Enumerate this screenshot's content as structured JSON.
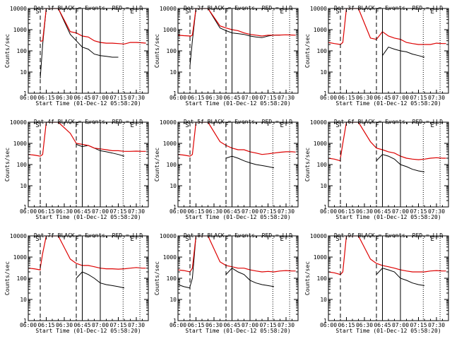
{
  "chart_data": [
    {
      "type": "line",
      "title": "Det 1f BLACK = Events, RED = LLD",
      "xlabel": "Start Time (01-Dec-12 05:58:20)",
      "ylabel": "Counts/sec",
      "yscale": "log",
      "ylim": [
        1,
        10000
      ],
      "xlim": [
        "06:00",
        "07:40"
      ],
      "x_ticks": [
        "06:00",
        "06:15",
        "06:30",
        "06:45",
        "07:00",
        "07:15",
        "07:30"
      ],
      "y_ticks": [
        "1",
        "10",
        "100",
        "1000",
        "10000"
      ],
      "grid": false,
      "vlines": {
        "dashed": [
          "06:10",
          "06:40"
        ],
        "solid": [
          "06:45",
          "07:00"
        ],
        "dotted": [
          "07:19",
          "07:33"
        ]
      },
      "markers": [
        "S",
        "F",
        "E"
      ],
      "x": [
        "06:00",
        "06:05",
        "06:10",
        "06:10",
        "06:12",
        "06:15",
        "06:25",
        "06:35",
        "06:40",
        "06:45",
        "06:50",
        "06:55",
        "07:00",
        "07:05",
        "07:10",
        "07:15",
        "07:20",
        "07:25",
        "07:30",
        "07:35",
        "07:38"
      ],
      "series": [
        {
          "name": "Events",
          "color": "#000000",
          "values": [
            null,
            null,
            null,
            5,
            200,
            10000,
            10000,
            600,
            300,
            150,
            120,
            70,
            60,
            55,
            50,
            50,
            null,
            null,
            null,
            null,
            null
          ]
        },
        {
          "name": "LLD",
          "color": "#dd0000",
          "values": [
            null,
            null,
            null,
            280,
            300,
            10000,
            10000,
            800,
            700,
            500,
            450,
            300,
            250,
            230,
            230,
            220,
            210,
            250,
            250,
            240,
            230
          ]
        }
      ]
    },
    {
      "type": "line",
      "title": "Det 2f BLACK = Events, RED = LLD",
      "xlabel": "Start Time (01-Dec-12 05:58:20)",
      "ylabel": "Counts/sec",
      "yscale": "log",
      "ylim": [
        1,
        10000
      ],
      "xlim": [
        "06:00",
        "07:40"
      ],
      "x_ticks": [
        "06:00",
        "06:15",
        "06:30",
        "06:45",
        "07:00",
        "07:15",
        "07:30"
      ],
      "y_ticks": [
        "1",
        "10",
        "100",
        "1000",
        "10000"
      ],
      "grid": false,
      "vlines": {
        "dashed": [
          "06:10",
          "06:40"
        ],
        "solid": [
          "06:45",
          "07:00"
        ],
        "dotted": [
          "07:19",
          "07:33"
        ]
      },
      "markers": [
        "S",
        "F",
        "E"
      ],
      "x": [
        "06:00",
        "06:05",
        "06:10",
        "06:10",
        "06:12",
        "06:15",
        "06:25",
        "06:35",
        "06:40",
        "06:45",
        "06:50",
        "06:55",
        "07:00",
        "07:05",
        "07:10",
        "07:15",
        "07:20",
        "07:25",
        "07:30",
        "07:35",
        "07:38"
      ],
      "series": [
        {
          "name": "Events",
          "color": "#000000",
          "values": [
            null,
            null,
            null,
            20,
            300,
            10000,
            10000,
            1200,
            900,
            700,
            650,
            600,
            500,
            450,
            420,
            500,
            550,
            550,
            null,
            null,
            null
          ]
        },
        {
          "name": "LLD",
          "color": "#dd0000",
          "values": [
            550,
            520,
            500,
            480,
            550,
            10000,
            10000,
            1500,
            1200,
            1000,
            900,
            700,
            600,
            550,
            500,
            550,
            550,
            560,
            570,
            560,
            550
          ]
        }
      ]
    },
    {
      "type": "line",
      "title": "Det 3f BLACK = Events, RED = LLD",
      "xlabel": "Start Time (01-Dec-12 05:58:20)",
      "ylabel": "Counts/sec",
      "yscale": "log",
      "ylim": [
        1,
        10000
      ],
      "xlim": [
        "06:00",
        "07:40"
      ],
      "x_ticks": [
        "06:00",
        "06:15",
        "06:30",
        "06:45",
        "07:00",
        "07:15",
        "07:30"
      ],
      "y_ticks": [
        "1",
        "10",
        "100",
        "1000",
        "10000"
      ],
      "grid": false,
      "vlines": {
        "dashed": [
          "06:10",
          "06:40"
        ],
        "solid": [
          "06:45",
          "07:00"
        ],
        "dotted": [
          "07:19",
          "07:33"
        ]
      },
      "markers": [
        "S",
        "F",
        "E"
      ],
      "x": [
        "06:00",
        "06:05",
        "06:10",
        "06:10",
        "06:12",
        "06:15",
        "06:25",
        "06:35",
        "06:40",
        "06:45",
        "06:50",
        "06:55",
        "07:00",
        "07:05",
        "07:10",
        "07:15",
        "07:20",
        "07:25",
        "07:30",
        "07:35",
        "07:38"
      ],
      "series": [
        {
          "name": "Events",
          "color": "#000000",
          "values": [
            null,
            null,
            null,
            null,
            null,
            null,
            null,
            null,
            null,
            60,
            150,
            120,
            100,
            90,
            70,
            60,
            50,
            null,
            null,
            null,
            null
          ]
        },
        {
          "name": "LLD",
          "color": "#dd0000",
          "values": [
            250,
            220,
            200,
            200,
            250,
            10000,
            10000,
            400,
            350,
            800,
            500,
            400,
            350,
            250,
            220,
            200,
            200,
            200,
            230,
            220,
            220
          ]
        }
      ]
    },
    {
      "type": "line",
      "title": "Det 4f BLACK = Events, RED = LLD",
      "xlabel": "Start Time (01-Dec-12 05:58:20)",
      "ylabel": "Counts/sec",
      "yscale": "log",
      "ylim": [
        1,
        10000
      ],
      "xlim": [
        "06:00",
        "07:40"
      ],
      "x_ticks": [
        "06:00",
        "06:15",
        "06:30",
        "06:45",
        "07:00",
        "07:15",
        "07:30"
      ],
      "y_ticks": [
        "1",
        "10",
        "100",
        "1000",
        "10000"
      ],
      "grid": false,
      "vlines": {
        "dashed": [
          "06:10",
          "06:40"
        ],
        "solid": [
          "06:45",
          "07:00"
        ],
        "dotted": [
          "07:19",
          "07:33"
        ]
      },
      "markers": [
        "S",
        "F",
        "E"
      ],
      "x": [
        "06:00",
        "06:05",
        "06:10",
        "06:10",
        "06:12",
        "06:15",
        "06:25",
        "06:35",
        "06:40",
        "06:45",
        "06:50",
        "06:55",
        "07:00",
        "07:05",
        "07:10",
        "07:15",
        "07:20",
        "07:25",
        "07:30",
        "07:35",
        "07:38"
      ],
      "series": [
        {
          "name": "Events",
          "color": "#000000",
          "values": [
            null,
            null,
            null,
            null,
            null,
            null,
            null,
            null,
            900,
            700,
            800,
            600,
            450,
            400,
            350,
            300,
            250,
            null,
            null,
            null,
            null
          ]
        },
        {
          "name": "LLD",
          "color": "#dd0000",
          "values": [
            300,
            280,
            250,
            250,
            300,
            10000,
            10000,
            3000,
            1000,
            900,
            800,
            600,
            550,
            500,
            450,
            450,
            420,
            420,
            430,
            420,
            420
          ]
        }
      ]
    },
    {
      "type": "line",
      "title": "Det 5f BLACK = Events, RED = LLD",
      "xlabel": "Start Time (01-Dec-12 05:58:20)",
      "ylabel": "Counts/sec",
      "yscale": "log",
      "ylim": [
        1,
        10000
      ],
      "xlim": [
        "06:00",
        "07:40"
      ],
      "x_ticks": [
        "06:00",
        "06:15",
        "06:30",
        "06:45",
        "07:00",
        "07:15",
        "07:30"
      ],
      "y_ticks": [
        "1",
        "10",
        "100",
        "1000",
        "10000"
      ],
      "grid": false,
      "vlines": {
        "dashed": [
          "06:10",
          "06:40"
        ],
        "solid": [
          "06:45",
          "07:00"
        ],
        "dotted": [
          "07:19",
          "07:33"
        ]
      },
      "markers": [
        "S",
        "F",
        "E"
      ],
      "x": [
        "06:00",
        "06:05",
        "06:10",
        "06:10",
        "06:12",
        "06:15",
        "06:25",
        "06:35",
        "06:40",
        "06:45",
        "06:50",
        "06:55",
        "07:00",
        "07:05",
        "07:10",
        "07:15",
        "07:20",
        "07:25",
        "07:30",
        "07:35",
        "07:38"
      ],
      "series": [
        {
          "name": "Events",
          "color": "#000000",
          "values": [
            null,
            null,
            null,
            null,
            null,
            null,
            null,
            null,
            200,
            250,
            200,
            150,
            120,
            100,
            90,
            80,
            70,
            null,
            null,
            null,
            null
          ]
        },
        {
          "name": "LLD",
          "color": "#dd0000",
          "values": [
            300,
            280,
            250,
            250,
            300,
            10000,
            10000,
            1200,
            800,
            600,
            500,
            500,
            400,
            350,
            300,
            320,
            350,
            380,
            400,
            400,
            390
          ]
        }
      ]
    },
    {
      "type": "line",
      "title": "Det 6f BLACK = Events, RED = LLD",
      "xlabel": "Start Time (01-Dec-12 05:58:20)",
      "ylabel": "Counts/sec",
      "yscale": "log",
      "ylim": [
        1,
        10000
      ],
      "xlim": [
        "06:00",
        "07:40"
      ],
      "x_ticks": [
        "06:00",
        "06:15",
        "06:30",
        "06:45",
        "07:00",
        "07:15",
        "07:30"
      ],
      "y_ticks": [
        "1",
        "10",
        "100",
        "1000",
        "10000"
      ],
      "grid": false,
      "vlines": {
        "dashed": [
          "06:10",
          "06:40"
        ],
        "solid": [
          "06:45",
          "07:00"
        ],
        "dotted": [
          "07:19",
          "07:33"
        ]
      },
      "markers": [
        "S",
        "F",
        "E"
      ],
      "x": [
        "06:00",
        "06:05",
        "06:10",
        "06:10",
        "06:12",
        "06:15",
        "06:25",
        "06:35",
        "06:40",
        "06:45",
        "06:50",
        "06:55",
        "07:00",
        "07:05",
        "07:10",
        "07:15",
        "07:20",
        "07:25",
        "07:30",
        "07:35",
        "07:38"
      ],
      "series": [
        {
          "name": "Events",
          "color": "#000000",
          "values": [
            null,
            null,
            null,
            null,
            null,
            null,
            null,
            null,
            150,
            300,
            250,
            180,
            100,
            80,
            60,
            50,
            45,
            null,
            null,
            null,
            null
          ]
        },
        {
          "name": "LLD",
          "color": "#dd0000",
          "values": [
            200,
            180,
            150,
            200,
            1000,
            10000,
            10000,
            1200,
            600,
            500,
            400,
            350,
            250,
            200,
            180,
            170,
            180,
            200,
            210,
            200,
            200
          ]
        }
      ]
    },
    {
      "type": "line",
      "title": "Det 7f BLACK = Events, RED = LLD",
      "xlabel": "Start Time (01-Dec-12 05:58:20)",
      "ylabel": "Counts/sec",
      "yscale": "log",
      "ylim": [
        1,
        10000
      ],
      "xlim": [
        "06:00",
        "07:40"
      ],
      "x_ticks": [
        "06:00",
        "06:15",
        "06:30",
        "06:45",
        "07:00",
        "07:15",
        "07:30"
      ],
      "y_ticks": [
        "1",
        "10",
        "100",
        "1000",
        "10000"
      ],
      "grid": false,
      "vlines": {
        "dashed": [
          "06:10",
          "06:40"
        ],
        "solid": [
          "06:45",
          "07:00"
        ],
        "dotted": [
          "07:19",
          "07:33"
        ]
      },
      "markers": [
        "S",
        "F",
        "E"
      ],
      "x": [
        "06:00",
        "06:05",
        "06:10",
        "06:10",
        "06:12",
        "06:15",
        "06:25",
        "06:35",
        "06:40",
        "06:45",
        "06:50",
        "06:55",
        "07:00",
        "07:05",
        "07:10",
        "07:15",
        "07:20",
        "07:25",
        "07:30",
        "07:35",
        "07:38"
      ],
      "series": [
        {
          "name": "Events",
          "color": "#000000",
          "values": [
            null,
            null,
            null,
            null,
            null,
            null,
            null,
            null,
            100,
            200,
            150,
            100,
            60,
            50,
            45,
            40,
            35,
            null,
            null,
            null,
            null
          ]
        },
        {
          "name": "LLD",
          "color": "#dd0000",
          "values": [
            300,
            280,
            250,
            300,
            1500,
            10000,
            10000,
            800,
            500,
            400,
            400,
            350,
            300,
            280,
            280,
            270,
            280,
            300,
            320,
            300,
            300
          ]
        }
      ]
    },
    {
      "type": "line",
      "title": "Det 8f BLACK = Events, RED = LLD",
      "xlabel": "Start Time (01-Dec-12 05:58:20)",
      "ylabel": "Counts/sec",
      "yscale": "log",
      "ylim": [
        1,
        10000
      ],
      "xlim": [
        "06:00",
        "07:40"
      ],
      "x_ticks": [
        "06:00",
        "06:15",
        "06:30",
        "06:45",
        "07:00",
        "07:15",
        "07:30"
      ],
      "y_ticks": [
        "1",
        "10",
        "100",
        "1000",
        "10000"
      ],
      "grid": false,
      "vlines": {
        "dashed": [
          "06:10",
          "06:40"
        ],
        "solid": [
          "06:45",
          "07:00"
        ],
        "dotted": [
          "07:19",
          "07:33"
        ]
      },
      "markers": [
        "S",
        "F",
        "E"
      ],
      "x": [
        "06:00",
        "06:05",
        "06:10",
        "06:10",
        "06:12",
        "06:15",
        "06:25",
        "06:35",
        "06:40",
        "06:45",
        "06:50",
        "06:55",
        "07:00",
        "07:05",
        "07:10",
        "07:15",
        "07:20",
        "07:25",
        "07:30",
        "07:35",
        "07:38"
      ],
      "series": [
        {
          "name": "Events",
          "color": "#000000",
          "values": [
            50,
            40,
            35,
            40,
            100,
            10000,
            10000,
            null,
            150,
            300,
            200,
            150,
            80,
            60,
            50,
            45,
            40,
            null,
            null,
            null,
            null
          ]
        },
        {
          "name": "LLD",
          "color": "#dd0000",
          "values": [
            250,
            230,
            200,
            200,
            300,
            10000,
            10000,
            600,
            400,
            350,
            300,
            300,
            250,
            220,
            200,
            210,
            200,
            220,
            230,
            220,
            220
          ]
        }
      ]
    },
    {
      "type": "line",
      "title": "Det 9f BLACK = Events, RED = LLD",
      "xlabel": "Start Time (01-Dec-12 05:58:20)",
      "ylabel": "Counts/sec",
      "yscale": "log",
      "ylim": [
        1,
        10000
      ],
      "xlim": [
        "06:00",
        "07:40"
      ],
      "x_ticks": [
        "06:00",
        "06:15",
        "06:30",
        "06:45",
        "07:00",
        "07:15",
        "07:30"
      ],
      "y_ticks": [
        "1",
        "10",
        "100",
        "1000",
        "10000"
      ],
      "grid": false,
      "vlines": {
        "dashed": [
          "06:10",
          "06:40"
        ],
        "solid": [
          "06:45",
          "07:00"
        ],
        "dotted": [
          "07:19",
          "07:33"
        ]
      },
      "markers": [
        "S",
        "F",
        "E"
      ],
      "x": [
        "06:00",
        "06:05",
        "06:10",
        "06:10",
        "06:12",
        "06:15",
        "06:25",
        "06:35",
        "06:40",
        "06:45",
        "06:50",
        "06:55",
        "07:00",
        "07:05",
        "07:10",
        "07:15",
        "07:20",
        "07:25",
        "07:30",
        "07:35",
        "07:38"
      ],
      "series": [
        {
          "name": "Events",
          "color": "#000000",
          "values": [
            null,
            null,
            null,
            null,
            null,
            null,
            null,
            null,
            150,
            300,
            250,
            200,
            100,
            80,
            60,
            50,
            45,
            null,
            null,
            null,
            null
          ]
        },
        {
          "name": "LLD",
          "color": "#dd0000",
          "values": [
            200,
            180,
            150,
            150,
            200,
            10000,
            10000,
            800,
            500,
            400,
            350,
            300,
            250,
            220,
            200,
            200,
            200,
            220,
            230,
            220,
            220
          ]
        }
      ]
    }
  ]
}
